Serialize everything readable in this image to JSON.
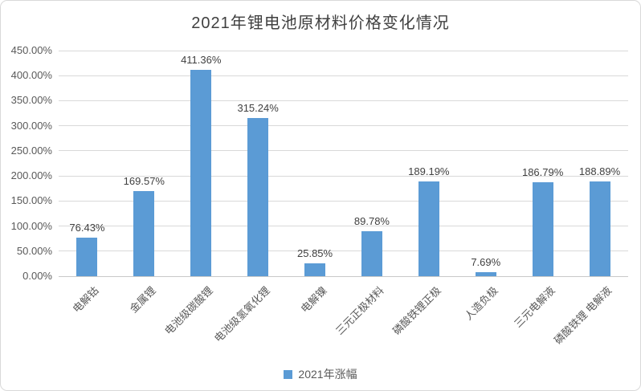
{
  "chart_data": {
    "type": "bar",
    "title": "2021年锂电池原材料价格变化情况",
    "xlabel": "",
    "ylabel": "",
    "categories": [
      "电解钴",
      "金属锂",
      "电池级碳酸锂",
      "电池级氢氧化锂",
      "电解镍",
      "三元正极材料",
      "磷酸铁锂正极",
      "人造负极",
      "三元电解液",
      "磷酸铁锂 电解液"
    ],
    "series": [
      {
        "name": "2021年涨幅",
        "values": [
          76.43,
          169.57,
          411.36,
          315.24,
          25.85,
          89.78,
          189.19,
          7.69,
          186.79,
          188.89
        ],
        "labels": [
          "76.43%",
          "169.57%",
          "411.36%",
          "315.24%",
          "25.85%",
          "89.78%",
          "189.19%",
          "7.69%",
          "186.79%",
          "188.89%"
        ]
      }
    ],
    "ylim": [
      0,
      450
    ],
    "ytick_step": 50,
    "ytick_labels": [
      "0.00%",
      "50.00%",
      "100.00%",
      "150.00%",
      "200.00%",
      "250.00%",
      "300.00%",
      "350.00%",
      "400.00%",
      "450.00%"
    ],
    "grid": true,
    "legend_position": "bottom",
    "color": "#5b9bd5"
  }
}
